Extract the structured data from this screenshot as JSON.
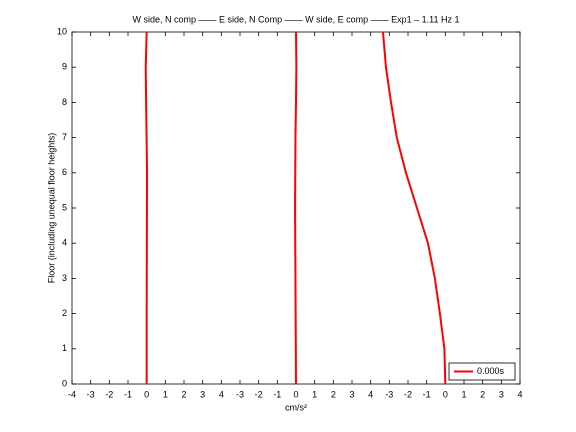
{
  "chart_data": {
    "type": "line",
    "title": "W side, N comp —— E side, N Comp —— W side, E comp —— Exp1 – 1.11 Hz 1",
    "x_label": "cm/s²",
    "y_label": "Floor (including unequal floor heights)",
    "xlim": [
      -4,
      20
    ],
    "ylim": [
      0,
      10
    ],
    "xticks": [
      -4,
      -3,
      -2,
      -1,
      0,
      1,
      2,
      3,
      4,
      {
        "value": 5,
        "label": "-3"
      },
      {
        "value": 6,
        "label": "-2"
      },
      {
        "value": 7,
        "label": "-1"
      },
      {
        "value": 8,
        "label": "0"
      },
      {
        "value": 9,
        "label": "1"
      },
      {
        "value": 10,
        "label": "2"
      },
      {
        "value": 11,
        "label": "3"
      },
      {
        "value": 12,
        "label": "4"
      },
      {
        "value": 13,
        "label": "-3"
      },
      {
        "value": 14,
        "label": "-2"
      },
      {
        "value": 15,
        "label": "-1"
      },
      {
        "value": 16,
        "label": "0"
      },
      {
        "value": 17,
        "label": "1"
      },
      {
        "value": 18,
        "label": "2"
      },
      {
        "value": 19,
        "label": "3"
      },
      {
        "value": 20,
        "label": "4"
      }
    ],
    "yticks": [
      0,
      1,
      2,
      3,
      4,
      5,
      6,
      7,
      8,
      9,
      10
    ],
    "legend_position": "lower right",
    "series": [
      {
        "name": "0.000s",
        "color": "#ff0000",
        "x": [
          0,
          0,
          0.01,
          0.02,
          -0.03,
          -0.05,
          0,
          null,
          8,
          7.97,
          7.95,
          7.97,
          8,
          8.02,
          8,
          null,
          16,
          15.95,
          15.71,
          15.44,
          15.07,
          14.48,
          13.89,
          13.4,
          13.09,
          12.82,
          12.66
        ],
        "y": [
          0,
          2,
          4,
          6,
          8,
          9,
          10,
          null,
          0,
          3,
          5,
          7,
          8,
          9,
          10,
          null,
          0,
          1,
          2,
          3,
          4,
          5,
          6,
          7,
          8,
          9,
          10
        ]
      }
    ]
  }
}
